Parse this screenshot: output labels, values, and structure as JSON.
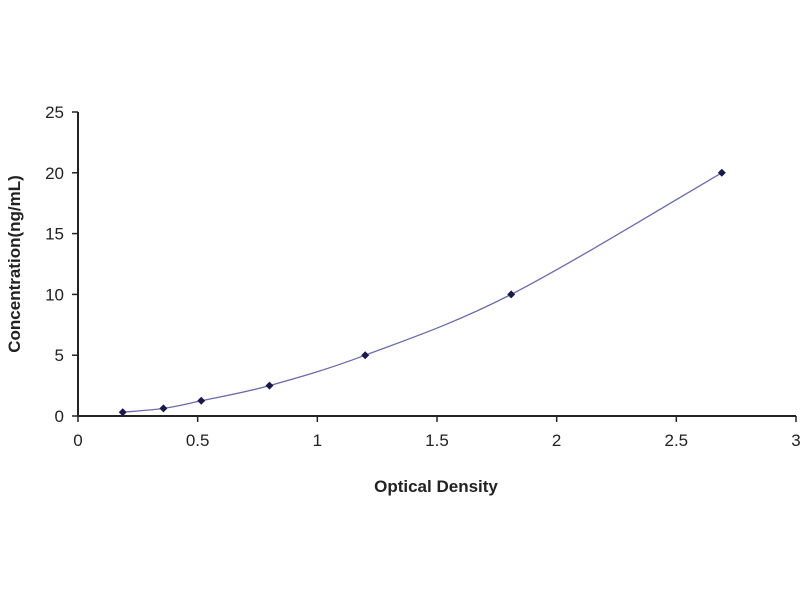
{
  "chart_data": {
    "type": "scatter",
    "title": "",
    "xlabel": "Optical Density",
    "ylabel": "Concentration(ng/mL)",
    "xlim": [
      0,
      3
    ],
    "ylim": [
      0,
      25
    ],
    "xticks": [
      "0",
      "0.5",
      "1",
      "1.5",
      "2",
      "2.5",
      "3"
    ],
    "yticks": [
      "0",
      "5",
      "10",
      "15",
      "20",
      "25"
    ],
    "grid": false,
    "legend": "none",
    "marker_color": "#1a1a4a",
    "line_color": "#6a6aa8",
    "series": [
      {
        "x": [
          0.187,
          0.357,
          0.515,
          0.8,
          1.2,
          1.81,
          2.69
        ],
        "y": [
          0.312,
          0.625,
          1.25,
          2.5,
          5,
          10,
          20
        ],
        "fit": "smooth curve"
      }
    ]
  }
}
